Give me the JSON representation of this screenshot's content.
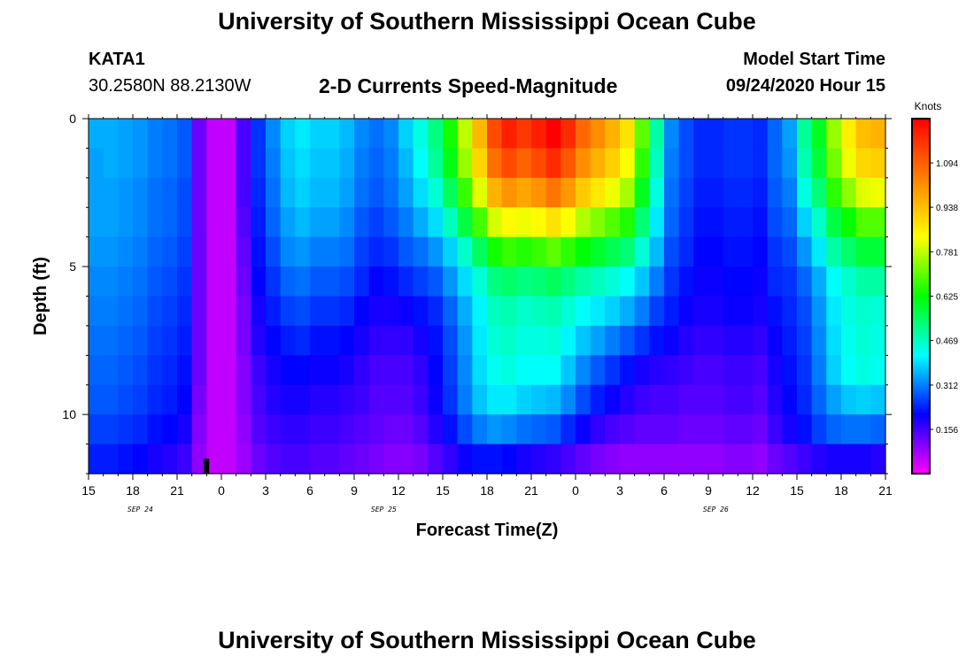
{
  "header": {
    "title": "University of Southern Mississippi Ocean Cube",
    "station_id": "KATA1",
    "station_coords": "30.2580N 88.2130W",
    "chart_title": "2-D Currents Speed-Magnitude",
    "model_label": "Model Start Time",
    "model_time": "09/24/2020 Hour 15"
  },
  "footer": {
    "title": "University of Southern Mississippi Ocean Cube"
  },
  "chart_data": {
    "type": "heatmap",
    "title": "2-D Currents Speed-Magnitude",
    "xlabel": "Forecast Time(Z)",
    "ylabel": "Depth (ft)",
    "colorbar_label": "Knots",
    "colorbar_ticks": [
      0.156,
      0.312,
      0.469,
      0.625,
      0.781,
      0.938,
      1.094
    ],
    "colorbar_range": [
      0,
      1.25
    ],
    "colors": [
      "#ff00ff",
      "#0000ff",
      "#00ffff",
      "#00ff00",
      "#ffff00",
      "#ff8000",
      "#ff0000"
    ],
    "x_tick_labels": [
      "15",
      "18",
      "21",
      "0",
      "3",
      "6",
      "9",
      "12",
      "15",
      "18",
      "21",
      "0",
      "3",
      "6",
      "9",
      "12",
      "15",
      "18",
      "21"
    ],
    "date_labels": [
      {
        "label": "SEP 24",
        "hour": 3.5
      },
      {
        "label": "SEP 25",
        "hour": 20
      },
      {
        "label": "SEP 26",
        "hour": 42.5
      }
    ],
    "xlim": [
      0,
      54
    ],
    "ylim": [
      0,
      12
    ],
    "y_ticks": [
      0,
      5,
      10
    ],
    "y_tick_labels": [
      "0",
      "5",
      "10"
    ],
    "grid": false,
    "forecast_hours": [
      0,
      1,
      2,
      3,
      4,
      5,
      6,
      7,
      8,
      9,
      10,
      11,
      12,
      13,
      14,
      15,
      16,
      17,
      18,
      19,
      20,
      21,
      22,
      23,
      24,
      25,
      26,
      27,
      28,
      29,
      30,
      31,
      32,
      33,
      34,
      35,
      36,
      37,
      38,
      39,
      40,
      41,
      42,
      43,
      44,
      45,
      46,
      47,
      48,
      49,
      50,
      51,
      52,
      53
    ],
    "depths": [
      0,
      1,
      2,
      3,
      4,
      5,
      6,
      7,
      8,
      9,
      10,
      11
    ],
    "speed_knots": [
      [
        0.35,
        0.35,
        0.34,
        0.33,
        0.31,
        0.3,
        0.28,
        0.12,
        0.05,
        0.05,
        0.15,
        0.25,
        0.32,
        0.38,
        0.4,
        0.38,
        0.38,
        0.36,
        0.32,
        0.3,
        0.32,
        0.38,
        0.44,
        0.52,
        0.64,
        0.78,
        0.95,
        1.13,
        1.2,
        1.16,
        1.2,
        1.26,
        1.18,
        1.08,
        1.02,
        0.96,
        0.88,
        0.7,
        0.49,
        0.32,
        0.27,
        0.24,
        0.24,
        0.25,
        0.25,
        0.24,
        0.29,
        0.34,
        0.5,
        0.6,
        0.75,
        0.86,
        0.94,
        0.96
      ],
      [
        0.34,
        0.35,
        0.34,
        0.33,
        0.31,
        0.3,
        0.28,
        0.12,
        0.05,
        0.05,
        0.15,
        0.25,
        0.31,
        0.37,
        0.39,
        0.37,
        0.37,
        0.35,
        0.31,
        0.29,
        0.31,
        0.36,
        0.42,
        0.5,
        0.61,
        0.75,
        0.9,
        1.07,
        1.13,
        1.09,
        1.13,
        1.18,
        1.11,
        1.02,
        0.96,
        0.91,
        0.83,
        0.66,
        0.47,
        0.31,
        0.27,
        0.24,
        0.24,
        0.25,
        0.25,
        0.24,
        0.29,
        0.33,
        0.48,
        0.58,
        0.72,
        0.82,
        0.9,
        0.91
      ],
      [
        0.34,
        0.34,
        0.33,
        0.32,
        0.3,
        0.29,
        0.27,
        0.12,
        0.05,
        0.05,
        0.15,
        0.24,
        0.3,
        0.36,
        0.38,
        0.36,
        0.36,
        0.34,
        0.3,
        0.28,
        0.3,
        0.34,
        0.39,
        0.45,
        0.55,
        0.67,
        0.81,
        0.96,
        1.01,
        0.98,
        1.01,
        1.06,
        1.0,
        0.92,
        0.87,
        0.82,
        0.76,
        0.6,
        0.44,
        0.3,
        0.26,
        0.23,
        0.23,
        0.24,
        0.24,
        0.23,
        0.28,
        0.31,
        0.44,
        0.53,
        0.66,
        0.74,
        0.81,
        0.82
      ],
      [
        0.34,
        0.34,
        0.33,
        0.32,
        0.3,
        0.29,
        0.27,
        0.12,
        0.05,
        0.05,
        0.14,
        0.23,
        0.29,
        0.34,
        0.36,
        0.34,
        0.34,
        0.32,
        0.28,
        0.26,
        0.28,
        0.31,
        0.35,
        0.39,
        0.47,
        0.57,
        0.68,
        0.8,
        0.84,
        0.82,
        0.84,
        0.88,
        0.83,
        0.77,
        0.73,
        0.69,
        0.65,
        0.53,
        0.4,
        0.29,
        0.25,
        0.22,
        0.22,
        0.23,
        0.23,
        0.22,
        0.27,
        0.29,
        0.38,
        0.46,
        0.57,
        0.63,
        0.69,
        0.69
      ],
      [
        0.33,
        0.33,
        0.32,
        0.31,
        0.29,
        0.28,
        0.26,
        0.12,
        0.05,
        0.05,
        0.13,
        0.22,
        0.27,
        0.32,
        0.33,
        0.31,
        0.31,
        0.3,
        0.26,
        0.24,
        0.25,
        0.28,
        0.3,
        0.33,
        0.38,
        0.46,
        0.55,
        0.64,
        0.67,
        0.65,
        0.67,
        0.7,
        0.66,
        0.62,
        0.59,
        0.56,
        0.53,
        0.45,
        0.36,
        0.27,
        0.24,
        0.21,
        0.21,
        0.22,
        0.22,
        0.21,
        0.25,
        0.27,
        0.33,
        0.4,
        0.49,
        0.54,
        0.58,
        0.58
      ],
      [
        0.32,
        0.32,
        0.31,
        0.3,
        0.28,
        0.27,
        0.25,
        0.12,
        0.05,
        0.05,
        0.12,
        0.21,
        0.25,
        0.29,
        0.3,
        0.28,
        0.28,
        0.27,
        0.24,
        0.21,
        0.22,
        0.24,
        0.26,
        0.28,
        0.33,
        0.39,
        0.45,
        0.52,
        0.54,
        0.52,
        0.53,
        0.55,
        0.52,
        0.49,
        0.47,
        0.45,
        0.42,
        0.37,
        0.31,
        0.25,
        0.22,
        0.2,
        0.2,
        0.21,
        0.21,
        0.2,
        0.24,
        0.25,
        0.29,
        0.35,
        0.42,
        0.46,
        0.49,
        0.49
      ],
      [
        0.31,
        0.31,
        0.3,
        0.29,
        0.27,
        0.26,
        0.24,
        0.12,
        0.05,
        0.05,
        0.11,
        0.19,
        0.23,
        0.26,
        0.27,
        0.25,
        0.25,
        0.24,
        0.21,
        0.19,
        0.19,
        0.2,
        0.22,
        0.24,
        0.29,
        0.35,
        0.41,
        0.47,
        0.48,
        0.46,
        0.47,
        0.48,
        0.45,
        0.42,
        0.4,
        0.38,
        0.35,
        0.31,
        0.26,
        0.23,
        0.2,
        0.19,
        0.19,
        0.2,
        0.2,
        0.19,
        0.22,
        0.24,
        0.27,
        0.33,
        0.4,
        0.44,
        0.46,
        0.45
      ],
      [
        0.3,
        0.3,
        0.29,
        0.28,
        0.26,
        0.25,
        0.23,
        0.12,
        0.05,
        0.05,
        0.11,
        0.18,
        0.21,
        0.23,
        0.24,
        0.22,
        0.22,
        0.21,
        0.19,
        0.17,
        0.17,
        0.17,
        0.19,
        0.22,
        0.27,
        0.33,
        0.4,
        0.45,
        0.46,
        0.44,
        0.44,
        0.45,
        0.41,
        0.37,
        0.34,
        0.31,
        0.28,
        0.25,
        0.22,
        0.2,
        0.18,
        0.17,
        0.17,
        0.18,
        0.18,
        0.17,
        0.2,
        0.23,
        0.26,
        0.32,
        0.39,
        0.43,
        0.45,
        0.44
      ],
      [
        0.29,
        0.29,
        0.28,
        0.27,
        0.25,
        0.24,
        0.22,
        0.12,
        0.05,
        0.05,
        0.1,
        0.16,
        0.19,
        0.21,
        0.21,
        0.2,
        0.2,
        0.19,
        0.17,
        0.15,
        0.15,
        0.15,
        0.17,
        0.21,
        0.26,
        0.32,
        0.39,
        0.43,
        0.44,
        0.42,
        0.42,
        0.42,
        0.37,
        0.32,
        0.28,
        0.25,
        0.22,
        0.19,
        0.18,
        0.17,
        0.16,
        0.15,
        0.15,
        0.16,
        0.16,
        0.15,
        0.19,
        0.22,
        0.25,
        0.31,
        0.38,
        0.42,
        0.44,
        0.43
      ],
      [
        0.28,
        0.28,
        0.27,
        0.26,
        0.24,
        0.23,
        0.21,
        0.11,
        0.05,
        0.05,
        0.1,
        0.15,
        0.18,
        0.19,
        0.19,
        0.18,
        0.18,
        0.17,
        0.16,
        0.14,
        0.14,
        0.14,
        0.16,
        0.2,
        0.25,
        0.31,
        0.37,
        0.4,
        0.4,
        0.38,
        0.37,
        0.36,
        0.32,
        0.27,
        0.23,
        0.2,
        0.18,
        0.16,
        0.15,
        0.15,
        0.14,
        0.14,
        0.14,
        0.15,
        0.15,
        0.14,
        0.18,
        0.21,
        0.24,
        0.29,
        0.34,
        0.37,
        0.38,
        0.37
      ],
      [
        0.26,
        0.26,
        0.25,
        0.24,
        0.22,
        0.21,
        0.19,
        0.1,
        0.05,
        0.05,
        0.09,
        0.14,
        0.16,
        0.17,
        0.17,
        0.16,
        0.16,
        0.15,
        0.14,
        0.13,
        0.12,
        0.12,
        0.14,
        0.18,
        0.22,
        0.27,
        0.31,
        0.33,
        0.32,
        0.3,
        0.29,
        0.28,
        0.24,
        0.2,
        0.17,
        0.15,
        0.14,
        0.13,
        0.13,
        0.13,
        0.12,
        0.12,
        0.12,
        0.13,
        0.13,
        0.12,
        0.16,
        0.19,
        0.22,
        0.26,
        0.29,
        0.3,
        0.3,
        0.29
      ],
      [
        0.23,
        0.23,
        0.22,
        0.21,
        0.19,
        0.18,
        0.16,
        0.09,
        0.05,
        0.05,
        0.08,
        0.12,
        0.14,
        0.15,
        0.15,
        0.14,
        0.14,
        0.13,
        0.12,
        0.11,
        0.1,
        0.1,
        0.11,
        0.14,
        0.17,
        0.2,
        0.22,
        0.22,
        0.21,
        0.19,
        0.18,
        0.17,
        0.15,
        0.13,
        0.11,
        0.1,
        0.09,
        0.09,
        0.09,
        0.09,
        0.09,
        0.09,
        0.09,
        0.1,
        0.1,
        0.09,
        0.12,
        0.14,
        0.16,
        0.18,
        0.19,
        0.19,
        0.19,
        0.18
      ]
    ],
    "marker_hour": 8
  }
}
